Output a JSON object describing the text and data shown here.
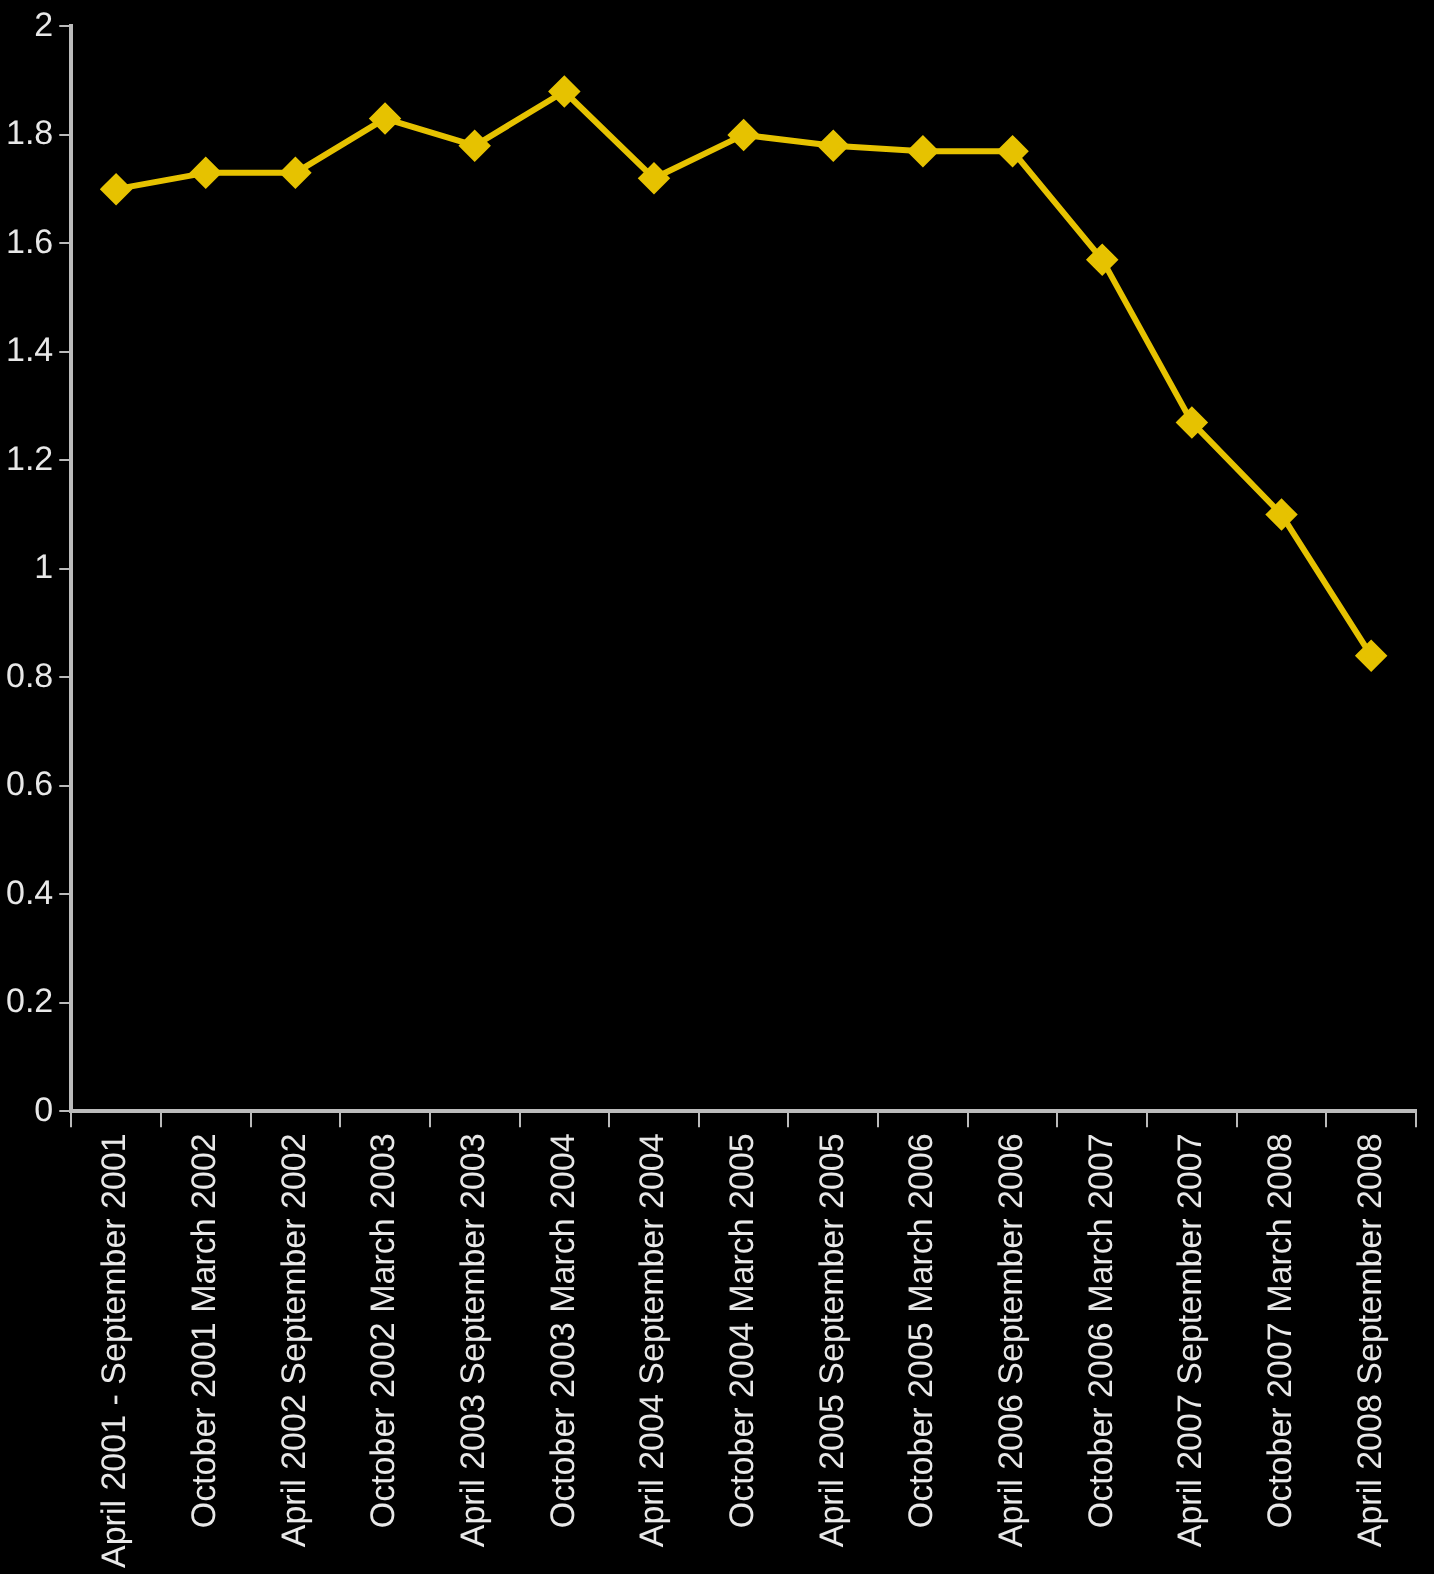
{
  "chart_data": {
    "type": "line",
    "categories": [
      "April 2001 - September 2001",
      "October 2001 March 2002",
      "April 2002 September 2002",
      "October 2002 March 2003",
      "April 2003 September 2003",
      "October 2003 March 2004",
      "April 2004 September 2004",
      "October 2004 March 2005",
      "April 2005 September 2005",
      "October 2005 March 2006",
      "April 2006 September 2006",
      "October 2006 March 2007",
      "April 2007 September 2007",
      "October 2007 March 2008",
      "April 2008 September 2008"
    ],
    "series": [
      {
        "color": "#e6c200",
        "values": [
          1.7,
          1.73,
          1.73,
          1.83,
          1.78,
          1.88,
          1.72,
          1.8,
          1.78,
          1.77,
          1.77,
          1.57,
          1.27,
          1.1,
          0.84
        ]
      }
    ],
    "ylim": [
      0,
      2
    ],
    "yticks": [
      0,
      0.2,
      0.4,
      0.6,
      0.8,
      1,
      1.2,
      1.4,
      1.6,
      1.8,
      2
    ],
    "grid": false,
    "legend": false,
    "marker": "diamond",
    "line_style": "solid"
  }
}
